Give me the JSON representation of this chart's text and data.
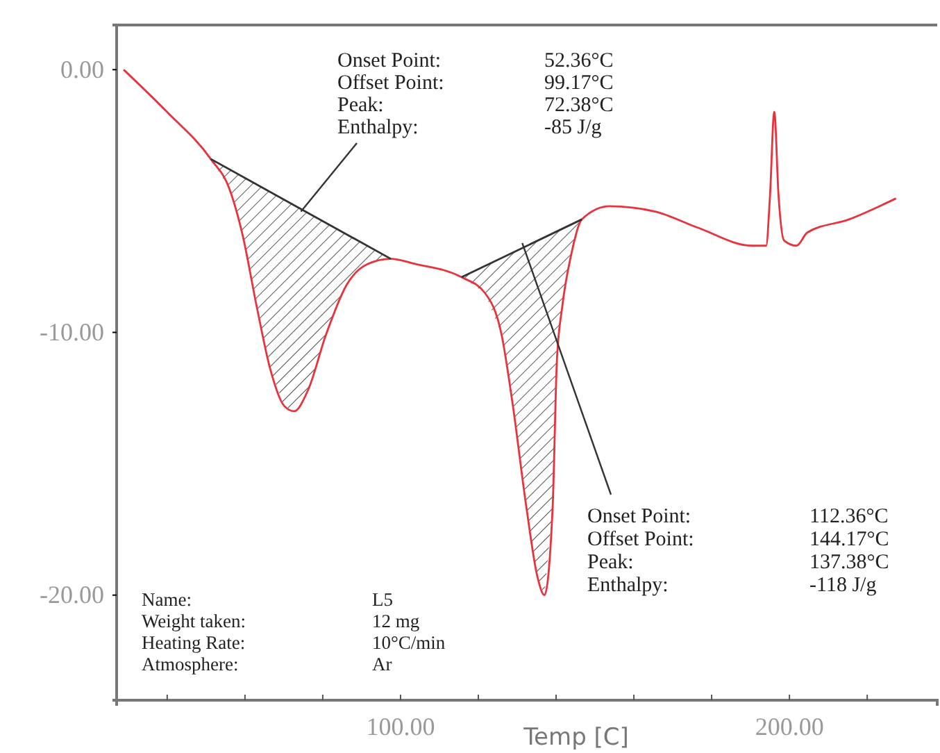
{
  "chart_data": {
    "type": "line",
    "xlabel": "Temp [C]",
    "xlim": [
      27,
      238
    ],
    "ylim": [
      -24,
      1.7
    ],
    "xticks": [
      {
        "value": 40,
        "label": null
      },
      {
        "value": 60,
        "label": null
      },
      {
        "value": 80,
        "label": null
      },
      {
        "value": 100,
        "label": "100.00"
      },
      {
        "value": 120,
        "label": null
      },
      {
        "value": 140,
        "label": null
      },
      {
        "value": 160,
        "label": null
      },
      {
        "value": 180,
        "label": null
      },
      {
        "value": 200,
        "label": "200.00"
      },
      {
        "value": 220,
        "label": null
      }
    ],
    "yticks": [
      {
        "value": 0,
        "label": "0.00"
      },
      {
        "value": -10,
        "label": "-10.00"
      },
      {
        "value": -20,
        "label": "-20.00"
      }
    ],
    "grid": false,
    "marker": "none",
    "line_style": "solid",
    "series": [
      {
        "color": "#e8323c",
        "x": [
          28.8,
          39.9,
          51.2,
          55.9,
          59.4,
          63.0,
          66.5,
          70.1,
          72.6,
          76.2,
          80.8,
          86.1,
          91.5,
          97.5,
          103.9,
          115.7,
          121.7,
          126,
          128.8,
          132.4,
          135.2,
          137.0,
          139.1,
          140.2,
          141.6,
          143.8,
          146.6,
          153.7,
          165.5,
          176.2,
          190.4,
          194,
          195,
          196.1,
          197.2,
          198.6,
          201.8,
          204.6,
          215.3,
          227.4
        ],
        "values": [
          0,
          -1.6,
          -3.4,
          -4.5,
          -6.3,
          -9.0,
          -11.4,
          -12.8,
          -13.0,
          -12.2,
          -10.1,
          -8.2,
          -7.4,
          -7.2,
          -7.4,
          -7.9,
          -8.5,
          -10.1,
          -12.7,
          -16.7,
          -19.3,
          -20.0,
          -16.7,
          -11.1,
          -9.0,
          -7.1,
          -5.7,
          -5.2,
          -5.4,
          -6.0,
          -6.7,
          -6.7,
          -4.8,
          -1.6,
          -4.8,
          -6.5,
          -6.7,
          -6.2,
          -5.7,
          -4.9
        ]
      },
      {
        "color": "#333333",
        "x": [
          51.2,
          97.5
        ],
        "values": [
          -3.4,
          -7.2
        ]
      },
      {
        "color": "#333333",
        "x": [
          115.7,
          146.6
        ],
        "values": [
          -7.9,
          -5.7
        ]
      }
    ],
    "annotations": [
      "Onset Point:",
      "Offset Point:",
      {
        "text": "Peak:",
        "x": 74.4,
        "y": -5.4
      },
      "Enthalpy:",
      "52.36°C",
      "99.17°C",
      "72.38°C",
      "-85 J/g",
      {
        "text": "Onset Point:",
        "x": 131.3,
        "y": -6.6
      },
      "Offset Point:",
      "Peak:",
      "Enthalpy:",
      "112.36°C",
      "144.17°C",
      "137.38°C",
      "-118 J/g",
      "Name:",
      "Weight taken:",
      "Heating Rate:",
      "Atmosphere:",
      "L5",
      "12 mg",
      "10°C/min",
      "Ar"
    ]
  }
}
